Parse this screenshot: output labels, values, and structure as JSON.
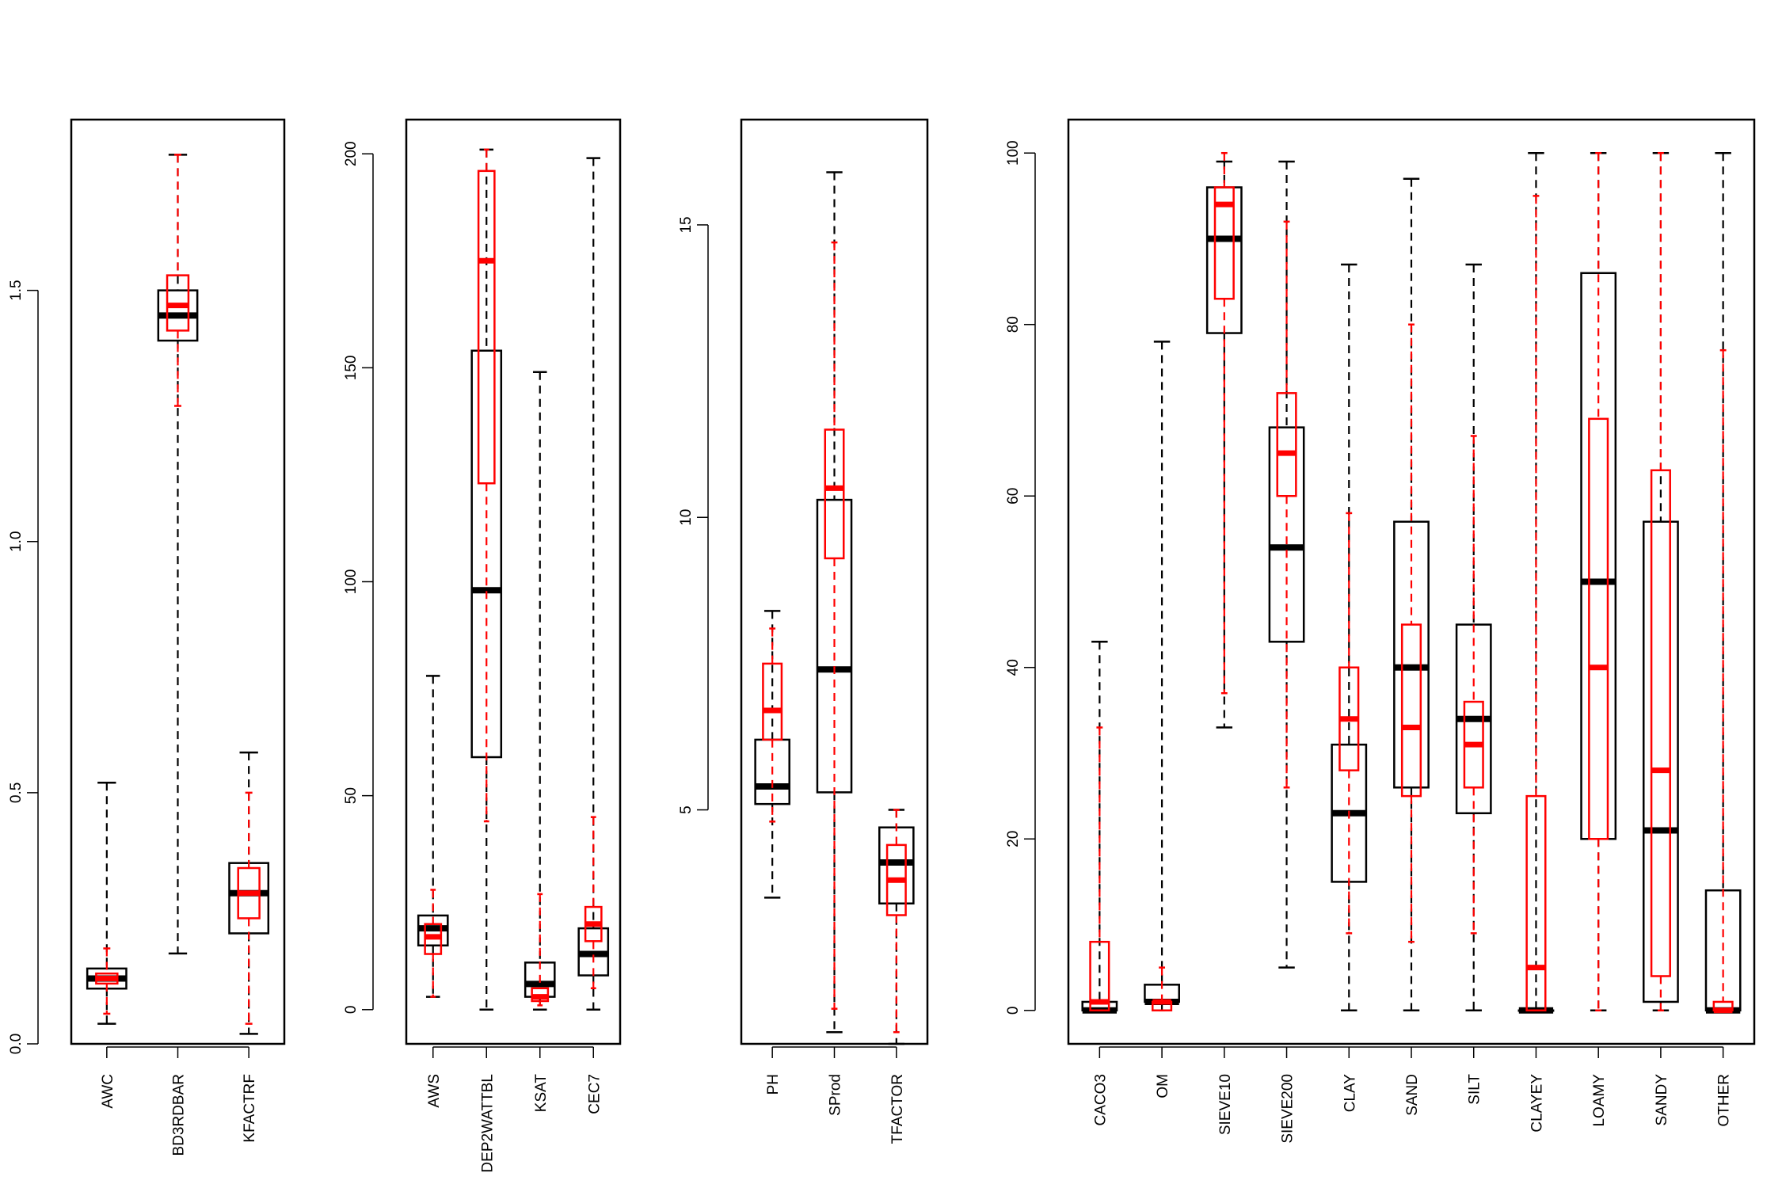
{
  "chart_data": [
    {
      "type": "boxplot",
      "ylim": [
        0,
        1.84
      ],
      "yticks": [
        0.0,
        0.5,
        1.0,
        1.5
      ],
      "ytick_labels": [
        "0.0",
        "0.5",
        "1.0",
        "1.5"
      ],
      "categories": [
        "AWC",
        "BD3RDBAR",
        "KFACTRF"
      ],
      "series": [
        {
          "color": "#000000",
          "stats": [
            [
              0.04,
              0.11,
              0.13,
              0.15,
              0.52
            ],
            [
              0.18,
              1.4,
              1.45,
              1.5,
              1.77
            ],
            [
              0.02,
              0.22,
              0.3,
              0.36,
              0.58
            ]
          ]
        },
        {
          "color": "#ff0000",
          "stats": [
            [
              0.06,
              0.12,
              0.13,
              0.14,
              0.19
            ],
            [
              1.27,
              1.42,
              1.47,
              1.53,
              1.77
            ],
            [
              0.04,
              0.25,
              0.3,
              0.35,
              0.5
            ]
          ]
        }
      ]
    },
    {
      "type": "boxplot",
      "ylim": [
        -8,
        208
      ],
      "yticks": [
        0,
        50,
        100,
        150,
        200
      ],
      "ytick_labels": [
        "0",
        "50",
        "100",
        "150",
        "200"
      ],
      "categories": [
        "AWS",
        "DEP2WATTBL",
        "KSAT",
        "CEC7"
      ],
      "series": [
        {
          "color": "#000000",
          "stats": [
            [
              3,
              15,
              19,
              22,
              78
            ],
            [
              0,
              59,
              98,
              154,
              201
            ],
            [
              0,
              3,
              6,
              11,
              149
            ],
            [
              0,
              8,
              13,
              19,
              199
            ]
          ]
        },
        {
          "color": "#ff0000",
          "stats": [
            [
              3,
              13,
              17,
              20,
              28
            ],
            [
              44,
              123,
              175,
              196,
              201
            ],
            [
              1,
              2,
              3,
              5,
              27
            ],
            [
              5,
              16,
              20,
              24,
              45
            ]
          ]
        }
      ]
    },
    {
      "type": "boxplot",
      "ylim": [
        1,
        16.8
      ],
      "yticks": [
        5,
        10,
        15
      ],
      "ytick_labels": [
        "5",
        "10",
        "15"
      ],
      "categories": [
        "PH",
        "SProd",
        "TFACTOR"
      ],
      "series": [
        {
          "color": "#000000",
          "stats": [
            [
              3.5,
              5.1,
              5.4,
              6.2,
              8.4
            ],
            [
              1.2,
              5.3,
              7.4,
              10.3,
              15.9
            ],
            [
              1.0,
              3.4,
              4.1,
              4.7,
              5.0
            ]
          ]
        },
        {
          "color": "#ff0000",
          "stats": [
            [
              4.8,
              6.2,
              6.7,
              7.5,
              8.1
            ],
            [
              1.6,
              9.3,
              10.5,
              11.5,
              14.7
            ],
            [
              1.2,
              3.2,
              3.8,
              4.4,
              5.0
            ]
          ]
        }
      ]
    },
    {
      "type": "boxplot",
      "ylim": [
        -3.9,
        103.9
      ],
      "yticks": [
        0,
        20,
        40,
        60,
        80,
        100
      ],
      "ytick_labels": [
        "0",
        "20",
        "40",
        "60",
        "80",
        "100"
      ],
      "categories": [
        "CACO3",
        "OM",
        "SIEVE10",
        "SIEVE200",
        "CLAY",
        "SAND",
        "SILT",
        "CLAYEY",
        "LOAMY",
        "SANDY",
        "OTHER"
      ],
      "series": [
        {
          "color": "#000000",
          "stats": [
            [
              0,
              0,
              0,
              1,
              43
            ],
            [
              0,
              1,
              1,
              3,
              78
            ],
            [
              33,
              79,
              90,
              96,
              99
            ],
            [
              5,
              43,
              54,
              68,
              99
            ],
            [
              0,
              15,
              23,
              31,
              87
            ],
            [
              0,
              26,
              40,
              57,
              97
            ],
            [
              0,
              23,
              34,
              45,
              87
            ],
            [
              0,
              0,
              0,
              0,
              100
            ],
            [
              0,
              20,
              50,
              86,
              100
            ],
            [
              0,
              1,
              21,
              57,
              100
            ],
            [
              0,
              0,
              0,
              14,
              100
            ]
          ]
        },
        {
          "color": "#ff0000",
          "stats": [
            [
              0,
              0,
              1,
              8,
              33
            ],
            [
              0,
              0,
              1,
              1,
              5
            ],
            [
              37,
              83,
              94,
              96,
              100
            ],
            [
              26,
              60,
              65,
              72,
              92
            ],
            [
              9,
              28,
              34,
              40,
              58
            ],
            [
              8,
              25,
              33,
              45,
              80
            ],
            [
              9,
              26,
              31,
              36,
              67
            ],
            [
              0,
              0,
              5,
              25,
              95
            ],
            [
              0,
              20,
              40,
              69,
              100
            ],
            [
              0,
              4,
              28,
              63,
              100
            ],
            [
              0,
              0,
              0,
              1,
              77
            ]
          ]
        }
      ]
    }
  ]
}
